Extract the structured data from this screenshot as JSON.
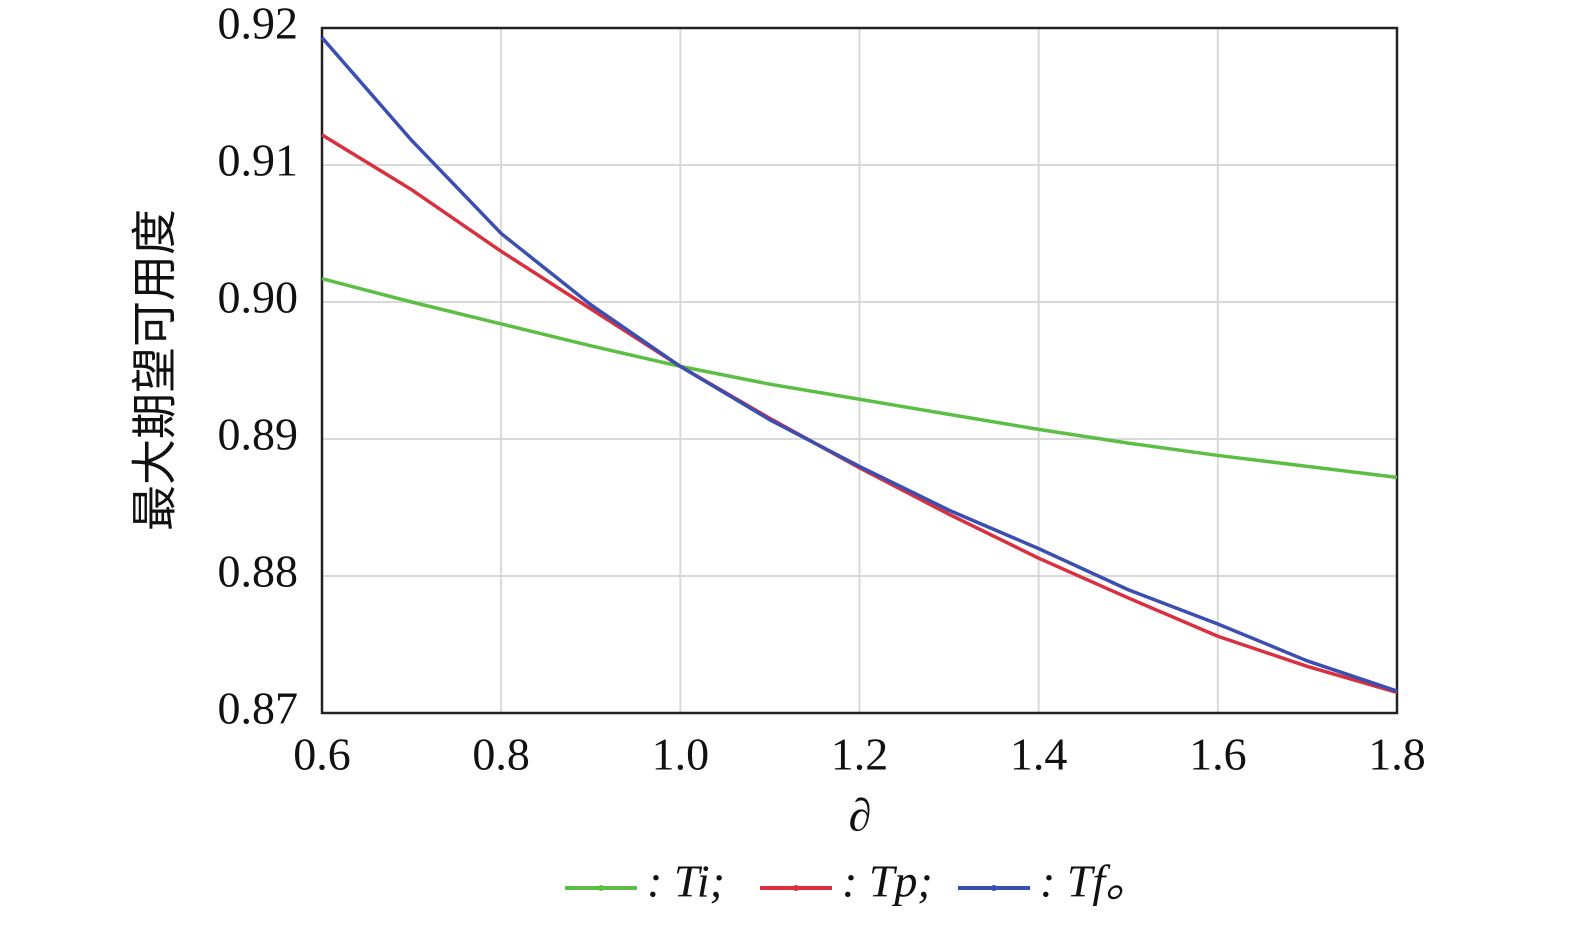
{
  "chart_data": {
    "type": "line",
    "x_label": "∂",
    "y_label": "最大期望可用度",
    "x": [
      0.6,
      0.7,
      0.8,
      0.9,
      1.0,
      1.1,
      1.2,
      1.3,
      1.4,
      1.5,
      1.6,
      1.7,
      1.8
    ],
    "series": [
      {
        "name": ": Ti;",
        "color": "#5cbf45",
        "values": [
          0.9017,
          0.9,
          0.8984,
          0.8968,
          0.8953,
          0.894,
          0.8929,
          0.8918,
          0.8907,
          0.8897,
          0.8888,
          0.888,
          0.8872
        ]
      },
      {
        "name": ": Tp;",
        "color": "#d9303f",
        "values": [
          0.9122,
          0.9082,
          0.9037,
          0.8995,
          0.8953,
          0.8915,
          0.8879,
          0.8845,
          0.8813,
          0.8784,
          0.8756,
          0.8734,
          0.8715
        ]
      },
      {
        "name": ": Tf。",
        "color": "#3b4fb0",
        "values": [
          0.9193,
          0.9118,
          0.905,
          0.8998,
          0.8953,
          0.8914,
          0.888,
          0.8848,
          0.882,
          0.879,
          0.8765,
          0.8738,
          0.8716
        ]
      }
    ],
    "xlim": [
      0.6,
      1.8
    ],
    "xticks": [
      0.6,
      0.8,
      {
        "value": 1.0,
        "label": "1.0"
      },
      1.2,
      1.4,
      1.6,
      1.8
    ],
    "ylim": [
      0.87,
      0.92
    ],
    "yticks": [
      0.87,
      0.88,
      0.89,
      {
        "value": 0.9,
        "label": "0.90"
      },
      0.91,
      0.92
    ],
    "grid": true
  }
}
